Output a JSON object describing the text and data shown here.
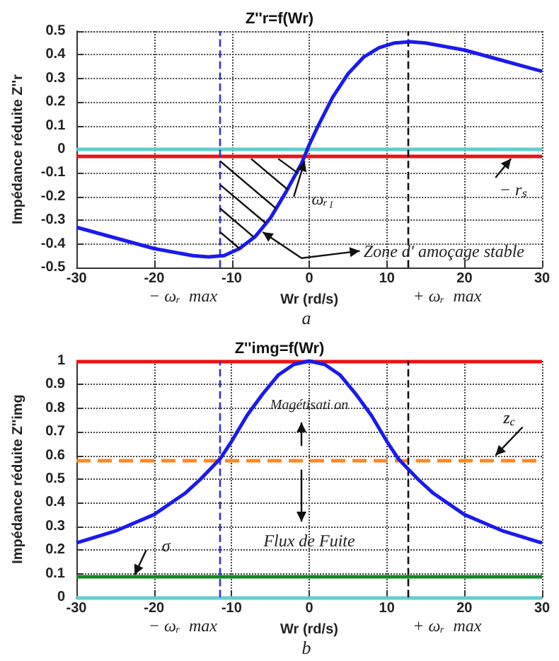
{
  "chart_data": [
    {
      "type": "line",
      "title": "Z''r=f(Wr)",
      "xlabel": "Wr (rd/s)",
      "ylabel": "Impédance réduite Z''r",
      "x": [
        -30,
        -25,
        -20,
        -15,
        -13,
        -11,
        -9,
        -7,
        -5,
        -3,
        -1,
        0,
        1,
        3,
        5,
        7,
        9,
        11,
        13,
        15,
        20,
        25,
        30
      ],
      "series": [
        {
          "color": "#1a1aee",
          "values": [
            -0.33,
            -0.375,
            -0.42,
            -0.45,
            -0.455,
            -0.45,
            -0.42,
            -0.37,
            -0.29,
            -0.18,
            -0.06,
            0.02,
            0.09,
            0.22,
            0.32,
            0.39,
            0.43,
            0.45,
            0.455,
            0.45,
            0.42,
            0.375,
            0.33
          ]
        }
      ],
      "xlim": [
        -30,
        30
      ],
      "xticks": [
        -30,
        -20,
        -10,
        0,
        10,
        20,
        30
      ],
      "ylim": [
        -0.5,
        0.5
      ],
      "yticks": [
        -0.5,
        -0.4,
        -0.3,
        -0.2,
        -0.1,
        0,
        0.1,
        0.2,
        0.3,
        0.4,
        0.5
      ],
      "grid": true,
      "ref_lines": [
        {
          "axis": "y",
          "value": 0,
          "color": "#66cccc",
          "line_style": "solid"
        },
        {
          "axis": "y",
          "value": -0.03,
          "color": "#ee1111",
          "line_style": "solid"
        },
        {
          "axis": "x",
          "value": -11.5,
          "color": "#3333cc",
          "line_style": "dashed"
        },
        {
          "axis": "x",
          "value": 12.8,
          "color": "#111111",
          "line_style": "dashed"
        }
      ],
      "annotations": [
        "ωᵣ₁",
        "− rₛ",
        {
          "text": "Zone d' amoçage stable",
          "x": -6,
          "y": -0.35
        },
        "− ωᵣ  max",
        "+ ωᵣ  max",
        "a"
      ]
    },
    {
      "type": "line",
      "title": "Z''img=f(Wr)",
      "xlabel": "Wr (rd/s)",
      "ylabel": "Impédance réduite Z''img",
      "x": [
        -30,
        -25,
        -20,
        -16,
        -14,
        -11.5,
        -10,
        -8,
        -6,
        -4,
        -2,
        0,
        2,
        4,
        6,
        8,
        10,
        11.5,
        14,
        16,
        20,
        25,
        30
      ],
      "series": [
        {
          "color": "#1a1aee",
          "values": [
            0.23,
            0.28,
            0.35,
            0.44,
            0.5,
            0.585,
            0.66,
            0.77,
            0.86,
            0.94,
            0.985,
            1,
            0.985,
            0.94,
            0.86,
            0.77,
            0.66,
            0.585,
            0.5,
            0.44,
            0.35,
            0.28,
            0.23
          ]
        }
      ],
      "xlim": [
        -30,
        30
      ],
      "xticks": [
        -30,
        -20,
        -10,
        0,
        10,
        20,
        30
      ],
      "ylim": [
        0,
        1
      ],
      "yticks": [
        0,
        0.1,
        0.2,
        0.3,
        0.4,
        0.5,
        0.6,
        0.7,
        0.8,
        0.9,
        1
      ],
      "grid": true,
      "ref_lines": [
        {
          "axis": "y",
          "value": 0,
          "color": "#66cccc",
          "line_style": "solid"
        },
        {
          "axis": "y",
          "value": 1,
          "color": "#ee1111",
          "line_style": "solid"
        },
        {
          "axis": "y",
          "value": 0.585,
          "color": "#ff8822",
          "line_style": "dashed"
        },
        {
          "axis": "y",
          "value": 0.085,
          "color": "#118822",
          "line_style": "solid"
        },
        {
          "axis": "x",
          "value": -11.5,
          "color": "#3333cc",
          "line_style": "dashed"
        },
        {
          "axis": "x",
          "value": 12.8,
          "color": "#111111",
          "line_style": "dashed"
        }
      ],
      "annotations": [
        "Magétisati on",
        "z$_{c}$",
        "Flux de Fuite",
        "σ",
        "− ωᵣ  max",
        "+ ωᵣ  max",
        "b"
      ]
    }
  ]
}
